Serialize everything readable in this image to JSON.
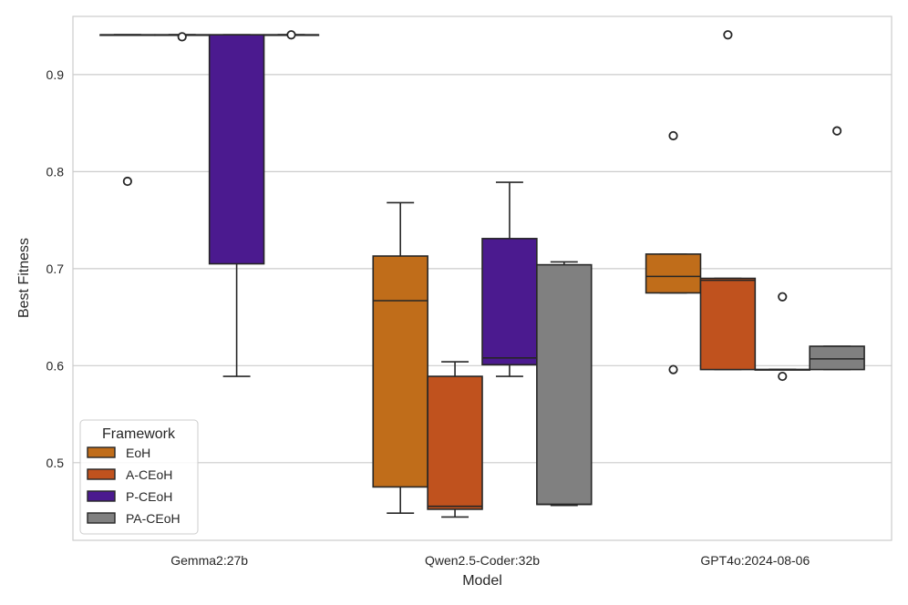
{
  "chart_data": {
    "type": "boxplot",
    "xlabel": "Model",
    "ylabel": "Best Fitness",
    "ylim": [
      0.42,
      0.96
    ],
    "yticks": [
      0.5,
      0.6,
      0.7,
      0.8,
      0.9
    ],
    "ytick_labels": [
      "0.5",
      "0.6",
      "0.7",
      "0.8",
      "0.9"
    ],
    "grid": true,
    "categories": [
      "Gemma2:27b",
      "Qwen2.5-Coder:32b",
      "GPT4o:2024-08-06"
    ],
    "legend": {
      "title": "Framework",
      "placement": "lower-left",
      "entries": [
        "EoH",
        "A-CEoH",
        "P-CEoH",
        "PA-CEoH"
      ]
    },
    "series": [
      {
        "name": "EoH",
        "color": "#c06d1a",
        "boxes": [
          {
            "category": "Gemma2:27b",
            "whisker_low": 0.941,
            "q1": 0.941,
            "median": 0.941,
            "q3": 0.941,
            "whisker_high": 0.941,
            "outliers": [
              0.79
            ]
          },
          {
            "category": "Qwen2.5-Coder:32b",
            "whisker_low": 0.448,
            "q1": 0.475,
            "median": 0.667,
            "q3": 0.713,
            "whisker_high": 0.768,
            "outliers": []
          },
          {
            "category": "GPT4o:2024-08-06",
            "whisker_low": 0.675,
            "q1": 0.675,
            "median": 0.692,
            "q3": 0.715,
            "whisker_high": 0.715,
            "outliers": [
              0.837,
              0.596
            ]
          }
        ]
      },
      {
        "name": "A-CEoH",
        "color": "#c0521e",
        "boxes": [
          {
            "category": "Gemma2:27b",
            "whisker_low": 0.941,
            "q1": 0.941,
            "median": 0.941,
            "q3": 0.941,
            "whisker_high": 0.941,
            "outliers": [
              0.939
            ]
          },
          {
            "category": "Qwen2.5-Coder:32b",
            "whisker_low": 0.444,
            "q1": 0.452,
            "median": 0.455,
            "q3": 0.589,
            "whisker_high": 0.604,
            "outliers": []
          },
          {
            "category": "GPT4o:2024-08-06",
            "whisker_low": 0.596,
            "q1": 0.596,
            "median": 0.688,
            "q3": 0.69,
            "whisker_high": 0.69,
            "outliers": [
              0.941
            ]
          }
        ]
      },
      {
        "name": "P-CEoH",
        "color": "#4b1a8f",
        "boxes": [
          {
            "category": "Gemma2:27b",
            "whisker_low": 0.589,
            "q1": 0.705,
            "median": 0.941,
            "q3": 0.941,
            "whisker_high": 0.941,
            "outliers": []
          },
          {
            "category": "Qwen2.5-Coder:32b",
            "whisker_low": 0.589,
            "q1": 0.601,
            "median": 0.608,
            "q3": 0.731,
            "whisker_high": 0.789,
            "outliers": []
          },
          {
            "category": "GPT4o:2024-08-06",
            "whisker_low": 0.596,
            "q1": 0.596,
            "median": 0.596,
            "q3": 0.596,
            "whisker_high": 0.596,
            "outliers": [
              0.671,
              0.589
            ]
          }
        ]
      },
      {
        "name": "PA-CEoH",
        "color": "#808080",
        "boxes": [
          {
            "category": "Gemma2:27b",
            "whisker_low": 0.941,
            "q1": 0.941,
            "median": 0.941,
            "q3": 0.941,
            "whisker_high": 0.941,
            "outliers": [
              0.941
            ]
          },
          {
            "category": "Qwen2.5-Coder:32b",
            "whisker_low": 0.456,
            "q1": 0.457,
            "median": 0.457,
            "q3": 0.704,
            "whisker_high": 0.707,
            "outliers": []
          },
          {
            "category": "GPT4o:2024-08-06",
            "whisker_low": 0.596,
            "q1": 0.596,
            "median": 0.607,
            "q3": 0.62,
            "whisker_high": 0.62,
            "outliers": [
              0.842
            ]
          }
        ]
      }
    ]
  }
}
